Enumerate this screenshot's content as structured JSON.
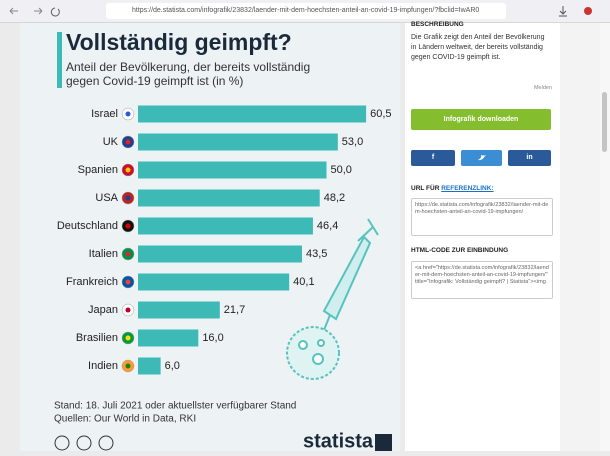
{
  "browser": {
    "url": "https://de.statista.com/infografik/23832/laender-mit-dem-hoechsten-anteil-an-covid-19-impfungen/?fbclid=IwAR0"
  },
  "chart_data": {
    "type": "bar",
    "orientation": "horizontal",
    "title": "Vollständig geimpft?",
    "subtitle": [
      "Anteil der Bevölkerung, der bereits vollständig",
      "gegen Covid-19 geimpft ist (in %)"
    ],
    "categories": [
      "Israel",
      "UK",
      "Spanien",
      "USA",
      "Deutschland",
      "Italien",
      "Frankreich",
      "Japan",
      "Brasilien",
      "Indien"
    ],
    "values": [
      60.5,
      53.0,
      50.0,
      48.2,
      46.4,
      43.5,
      40.1,
      21.7,
      16.0,
      6.0
    ],
    "value_labels": [
      "60,5",
      "53,0",
      "50,0",
      "48,2",
      "46,4",
      "43,5",
      "40,1",
      "21,7",
      "16,0",
      "6,0"
    ],
    "color": "#3dbab6",
    "notes": [
      "Stand: 18. Juli 2021 oder aktuellster verfügbarer Stand",
      "Quellen: Our World in Data, RKI"
    ],
    "brand": "statista"
  },
  "sidebar": {
    "description_heading": "BESCHREIBUNG",
    "description": "Die Grafik zeigt den Anteil der Bevölkerung in Ländern weltweit, der bereits vollständig gegen COVID-19 geimpft ist.",
    "report": "Melden",
    "download": "Infografik downloaden",
    "facebook": "f",
    "linkedin": "in",
    "url_heading": "URL FÜR",
    "url_heading_link": "REFERENZLINK:",
    "url_text": "https://de.statista.com/infografik/23832/laender-mit-dem-hoechsten-anteil-an-covid-19-impfungen/",
    "embed_heading": "HTML-CODE ZUR EINBINDUNG",
    "embed_code": "<a href=\"https://de.statista.com/infografik/23832/laender-mit-dem-hoechsten-anteil-an-covid-19-impfungen/\" title=\"Infografik: Vollständig geimpft? | Statista\"><img"
  }
}
